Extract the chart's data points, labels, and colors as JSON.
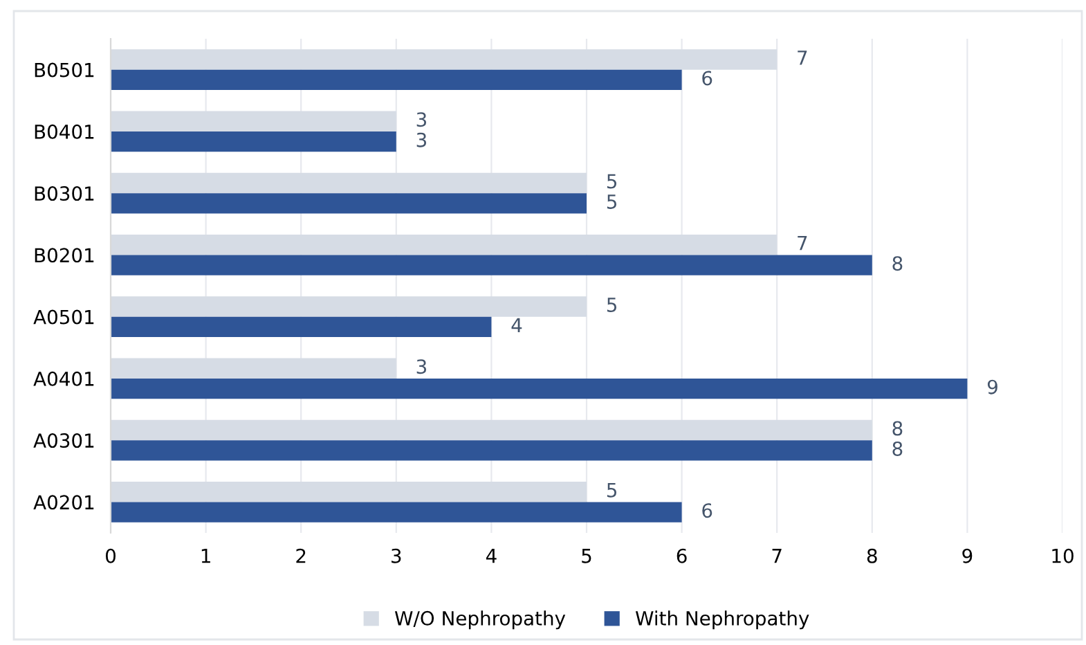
{
  "chart_data": {
    "type": "bar",
    "orientation": "horizontal",
    "categories": [
      "B0501",
      "B0401",
      "B0301",
      "B0201",
      "A0501",
      "A0401",
      "A0301",
      "A0201"
    ],
    "series": [
      {
        "name": "W/O Nephropathy",
        "color": "#d6dce5",
        "values": [
          7,
          3,
          5,
          7,
          5,
          3,
          8,
          5
        ]
      },
      {
        "name": "With Nephropathy",
        "color": "#2f5597",
        "values": [
          6,
          3,
          5,
          8,
          4,
          9,
          8,
          6
        ]
      }
    ],
    "xlim": [
      0,
      10
    ],
    "xticks": [
      0,
      1,
      2,
      3,
      4,
      5,
      6,
      7,
      8,
      9,
      10
    ],
    "grid": "x",
    "legend": "bottom",
    "data_labels": true
  }
}
